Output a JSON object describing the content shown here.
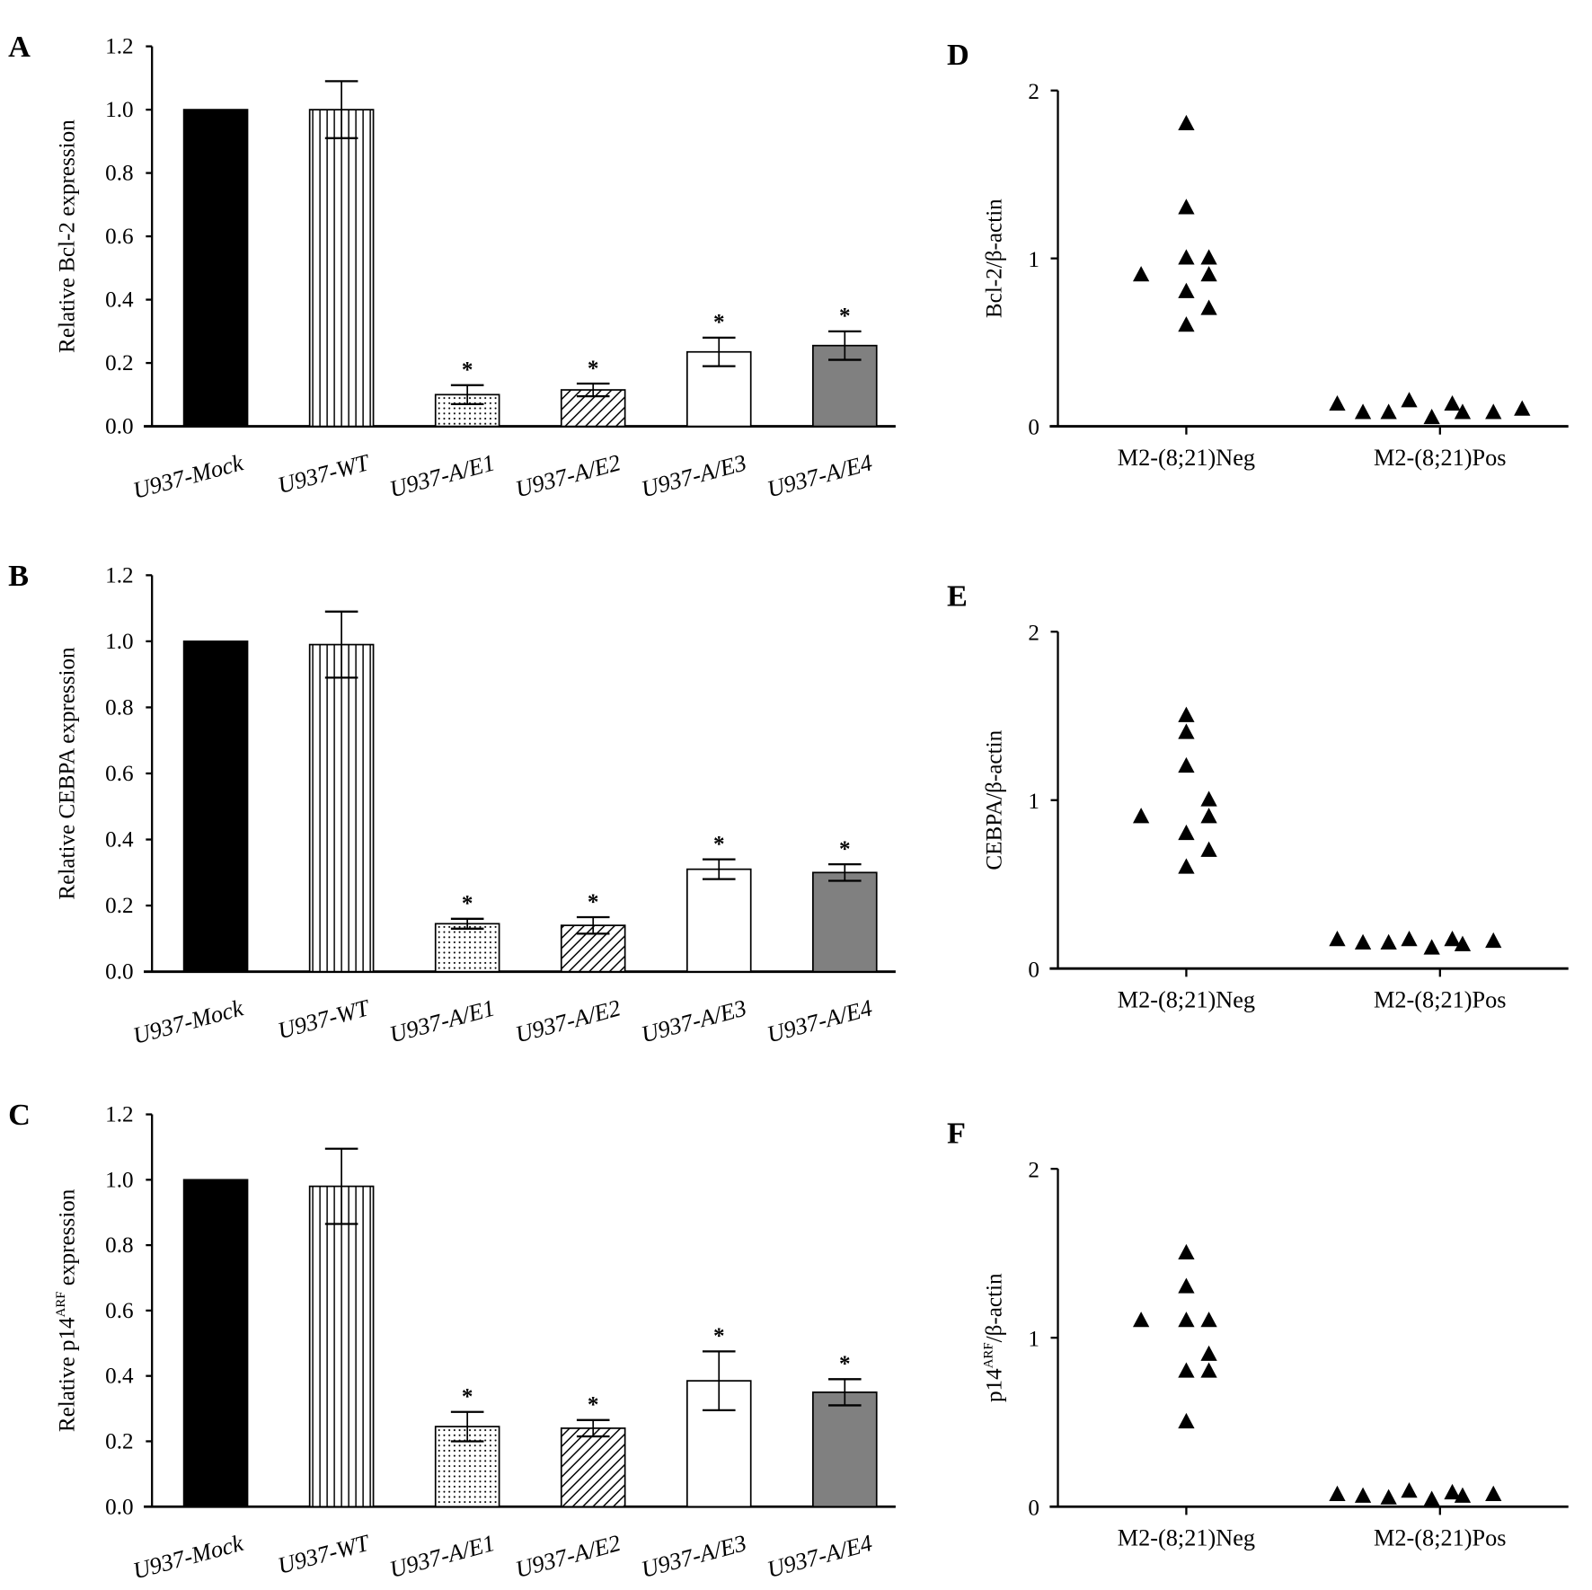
{
  "chart_data": [
    {
      "panel": "A",
      "type": "bar",
      "ylabel": "Relative Bcl-2 expression",
      "categories": [
        "U937-Mock",
        "U937-WT",
        "U937-A/E1",
        "U937-A/E2",
        "U937-A/E3",
        "U937-A/E4"
      ],
      "values": [
        1.0,
        1.0,
        0.1,
        0.115,
        0.235,
        0.255
      ],
      "errors": [
        0,
        0.09,
        0.03,
        0.02,
        0.045,
        0.045
      ],
      "significance": [
        "",
        "",
        "*",
        "*",
        "*",
        "*"
      ],
      "ylim": [
        0,
        1.2
      ],
      "yticks": [
        "0.0",
        "0.2",
        "0.4",
        "0.6",
        "0.8",
        "1.0",
        "1.2"
      ]
    },
    {
      "panel": "B",
      "type": "bar",
      "ylabel": "Relative CEBPA expression",
      "categories": [
        "U937-Mock",
        "U937-WT",
        "U937-A/E1",
        "U937-A/E2",
        "U937-A/E3",
        "U937-A/E4"
      ],
      "values": [
        1.0,
        0.99,
        0.145,
        0.14,
        0.31,
        0.3
      ],
      "errors": [
        0,
        0.1,
        0.015,
        0.025,
        0.03,
        0.025
      ],
      "significance": [
        "",
        "",
        "*",
        "*",
        "*",
        "*"
      ],
      "ylim": [
        0,
        1.2
      ],
      "yticks": [
        "0.0",
        "0.2",
        "0.4",
        "0.6",
        "0.8",
        "1.0",
        "1.2"
      ]
    },
    {
      "panel": "C",
      "type": "bar",
      "ylabel": "Relative p14ARF expression",
      "ylabel_parts": [
        "Relative p14",
        "ARF",
        " expression"
      ],
      "categories": [
        "U937-Mock",
        "U937-WT",
        "U937-A/E1",
        "U937-A/E2",
        "U937-A/E3",
        "U937-A/E4"
      ],
      "values": [
        1.0,
        0.98,
        0.245,
        0.24,
        0.385,
        0.35
      ],
      "errors": [
        0,
        0.115,
        0.045,
        0.025,
        0.09,
        0.04
      ],
      "significance": [
        "",
        "",
        "*",
        "*",
        "*",
        "*"
      ],
      "ylim": [
        0,
        1.2
      ],
      "yticks": [
        "0.0",
        "0.2",
        "0.4",
        "0.6",
        "0.8",
        "1.0",
        "1.2"
      ]
    },
    {
      "panel": "D",
      "type": "scatter",
      "ylabel": "Bcl-2/β-actin",
      "groups": [
        "M2-(8;21)Neg",
        "M2-(8;21)Pos"
      ],
      "series": [
        {
          "name": "M2-(8;21)Neg",
          "values": [
            1.8,
            1.3,
            1.0,
            1.0,
            0.9,
            0.9,
            0.8,
            0.7,
            0.6
          ]
        },
        {
          "name": "M2-(8;21)Pos",
          "values": [
            0.13,
            0.08,
            0.08,
            0.15,
            0.05,
            0.13,
            0.08,
            0.08,
            0.1
          ]
        }
      ],
      "ylim": [
        0,
        2
      ],
      "yticks": [
        "0",
        "1",
        "2"
      ]
    },
    {
      "panel": "E",
      "type": "scatter",
      "ylabel": "CEBPA/β-actin",
      "groups": [
        "M2-(8;21)Neg",
        "M2-(8;21)Pos"
      ],
      "series": [
        {
          "name": "M2-(8;21)Neg",
          "values": [
            1.5,
            1.4,
            1.2,
            1.0,
            0.9,
            0.9,
            0.8,
            0.7,
            0.6
          ]
        },
        {
          "name": "M2-(8;21)Pos",
          "values": [
            0.17,
            0.15,
            0.15,
            0.17,
            0.12,
            0.17,
            0.14,
            0.16
          ]
        }
      ],
      "ylim": [
        0,
        2
      ],
      "yticks": [
        "0",
        "1",
        "2"
      ]
    },
    {
      "panel": "F",
      "type": "scatter",
      "ylabel": "p14ARF/β-actin",
      "ylabel_parts": [
        "p14",
        "ARF",
        "/β-actin"
      ],
      "groups": [
        "M2-(8;21)Neg",
        "M2-(8;21)Pos"
      ],
      "series": [
        {
          "name": "M2-(8;21)Neg",
          "values": [
            1.5,
            1.3,
            1.1,
            1.1,
            1.1,
            0.9,
            0.8,
            0.8,
            0.5
          ]
        },
        {
          "name": "M2-(8;21)Pos",
          "values": [
            0.07,
            0.06,
            0.05,
            0.09,
            0.04,
            0.08,
            0.06,
            0.07
          ]
        }
      ],
      "ylim": [
        0,
        2
      ],
      "yticks": [
        "0",
        "1",
        "2"
      ]
    }
  ],
  "colors": {
    "mock": "#000000",
    "e4": "#808080",
    "axis": "#000000"
  }
}
